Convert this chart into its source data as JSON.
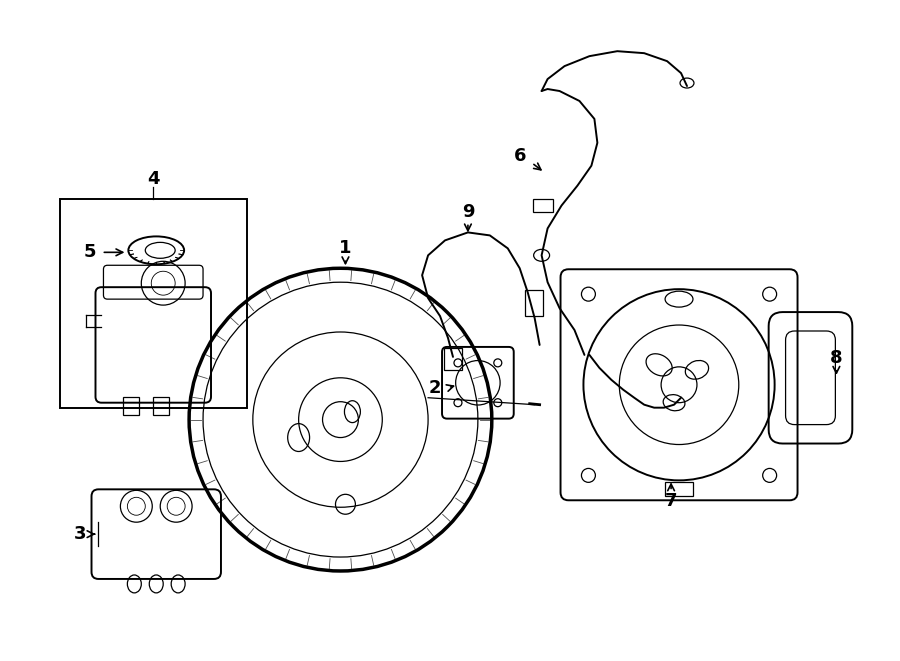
{
  "bg_color": "#ffffff",
  "line_color": "#000000",
  "fig_width": 9.0,
  "fig_height": 6.61,
  "dpi": 100,
  "lw_thick": 2.5,
  "lw_main": 1.4,
  "lw_thin": 0.9,
  "lw_hair": 0.6,
  "label_fontsize": 13
}
